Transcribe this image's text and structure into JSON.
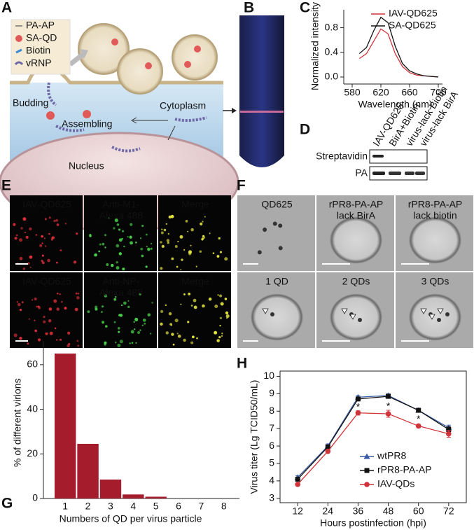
{
  "figure_a": {
    "label": "A",
    "legend": [
      "PA-AP",
      "SA-QD",
      "Biotin",
      "vRNP"
    ],
    "budding": "Budding",
    "cytoplasm": "Cytoplasm",
    "assembling": "Assembling",
    "nucleus": "Nucleus"
  },
  "figure_b": {
    "label": "B"
  },
  "figure_d": {
    "label": "D",
    "lanes": [
      "IAV-QD625",
      "BirA+Biotin",
      "virus-lack Biotin",
      "virus-lack BirA"
    ],
    "rows": [
      "Streptavidin",
      "PA"
    ]
  },
  "figure_e": {
    "label": "E",
    "panels": [
      [
        "IAV-QD625"
      ],
      [
        "Anti-M1-",
        "Alexa 488"
      ],
      [
        "Merge"
      ],
      [
        "IAV-QD625"
      ],
      [
        "Anti-NP-",
        "Alexa 488"
      ],
      [
        "Merge"
      ]
    ]
  },
  "figure_f": {
    "label": "F",
    "panels": [
      [
        "QD625"
      ],
      [
        "rPR8-PA-AP",
        "lack BirA"
      ],
      [
        "rPR8-PA-AP",
        "lack biotin"
      ],
      [
        "1 QD"
      ],
      [
        "2 QDs"
      ],
      [
        "3 QDs"
      ]
    ]
  },
  "chart_data": [
    {
      "label": "C",
      "type": "line",
      "x_label": "Wavelength (nm)",
      "y_label": "Normalized intensity",
      "x": [
        590,
        600,
        610,
        620,
        630,
        640,
        650,
        660,
        670,
        680,
        690,
        700
      ],
      "series": [
        {
          "name": "IAV-QD625",
          "color": "#d0343a",
          "values": [
            0.3,
            0.38,
            0.58,
            0.78,
            0.7,
            0.38,
            0.17,
            0.07,
            0.03,
            0.02,
            0.01,
            0.0
          ]
        },
        {
          "name": "SA-QD625",
          "color": "#111111",
          "values": [
            0.38,
            0.48,
            0.75,
            0.97,
            0.88,
            0.5,
            0.22,
            0.1,
            0.05,
            0.02,
            0.01,
            0.0
          ]
        }
      ],
      "xlim": [
        580,
        700
      ],
      "ylim": [
        0,
        1
      ],
      "xticks": [
        580,
        620,
        660,
        700
      ],
      "yticks": [
        {
          "value": 0,
          "label": "0.0"
        },
        {
          "value": 0.4,
          "label": "0.4"
        },
        {
          "value": 0.8,
          "label": "0.8"
        }
      ],
      "legend": "upper right"
    },
    {
      "label": "G",
      "type": "bar",
      "x_label": "Numbers of QD per virus particle",
      "y_label": "% of different virions",
      "categories": [
        "1",
        "2",
        "3",
        "4",
        "5",
        "6",
        "7",
        "8"
      ],
      "values": [
        65,
        24.5,
        8.5,
        1.8,
        0.8,
        0,
        0,
        0
      ],
      "color": "#a51d2d",
      "ylim": [
        0,
        68
      ],
      "yticks": [
        0,
        20,
        40,
        60
      ]
    },
    {
      "label": "H",
      "type": "line",
      "x_label": "Hours postinfection (hpi)",
      "y_label": "Virus titer (Lg TCID50/mL)",
      "x": [
        12,
        24,
        36,
        48,
        60,
        72
      ],
      "series": [
        {
          "name": "wtPR8",
          "color": "#3b5ba5",
          "marker": "triangle",
          "values": [
            4.2,
            6.0,
            8.8,
            8.9,
            8.05,
            7.05
          ],
          "errors": [
            0.1,
            0.12,
            0.1,
            0.1,
            0.08,
            0.15
          ]
        },
        {
          "name": "rPR8-PA-AP",
          "color": "#111111",
          "marker": "square",
          "values": [
            4.1,
            5.95,
            8.7,
            8.85,
            8.05,
            6.95
          ],
          "errors": [
            0.1,
            0.1,
            0.1,
            0.1,
            0.08,
            0.15
          ]
        },
        {
          "name": "IAV-QDs",
          "color": "#d0343a",
          "marker": "circle",
          "values": [
            3.8,
            5.7,
            7.9,
            7.85,
            7.15,
            6.7
          ],
          "errors": [
            0.08,
            0.1,
            0.12,
            0.2,
            0.1,
            0.2
          ]
        }
      ],
      "xlim": [
        5,
        79
      ],
      "ylim": [
        2.75,
        10.3
      ],
      "xticks": [
        12,
        24,
        36,
        48,
        60,
        72
      ],
      "yticks": [
        3,
        4,
        5,
        6,
        7,
        8,
        9,
        10
      ],
      "annotations": [
        {
          "x": 36,
          "text": "*"
        },
        {
          "x": 48,
          "text": "*"
        },
        {
          "x": 60,
          "text": "*"
        }
      ],
      "legend": "lower right",
      "frame": true
    }
  ]
}
